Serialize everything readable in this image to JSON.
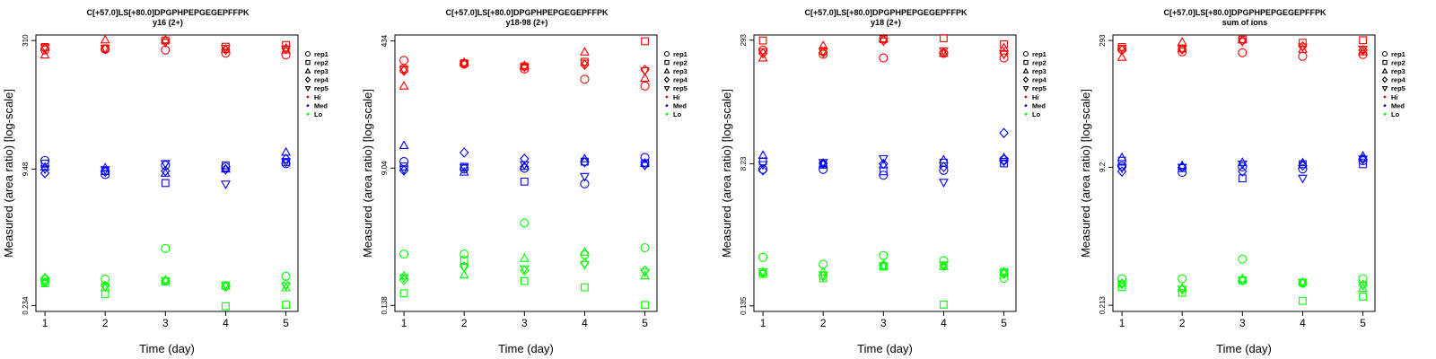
{
  "legend": {
    "shapes": [
      {
        "label": "rep1",
        "shape": "circle"
      },
      {
        "label": "rep2",
        "shape": "square"
      },
      {
        "label": "rep3",
        "shape": "triangle-up"
      },
      {
        "label": "rep4",
        "shape": "diamond"
      },
      {
        "label": "rep5",
        "shape": "triangle-down"
      }
    ],
    "levels": [
      {
        "label": "Hi",
        "color": "#ff0000"
      },
      {
        "label": "Med",
        "color": "#0000ff"
      },
      {
        "label": "Lo",
        "color": "#00ff00"
      }
    ]
  },
  "chart_data": [
    {
      "type": "scatter",
      "title": "C[+57.0]LS[+80.0]DPGPHPEPGEGEPFFPK",
      "subtitle": "y16 (2+)",
      "xlabel": "Time (day)",
      "ylabel": "Measured (area ratio) [log-scale]",
      "yscale": "log",
      "x_ticks": [
        1,
        2,
        3,
        4,
        5
      ],
      "y_ticks": [
        "0.234",
        "9.48",
        "310"
      ],
      "xlim": [
        0.85,
        5.2
      ],
      "ylim": [
        0.2,
        360
      ],
      "series": [
        {
          "name": "rep1",
          "level": "Hi",
          "values": [
            240,
            245,
            240,
            220,
            210
          ]
        },
        {
          "name": "rep2",
          "level": "Hi",
          "values": [
            260,
            250,
            310,
            262,
            275
          ]
        },
        {
          "name": "rep3",
          "level": "Hi",
          "values": [
            210,
            315,
            315,
            245,
            240
          ]
        },
        {
          "name": "rep4",
          "level": "Hi",
          "values": [
            250,
            245,
            305,
            240,
            250
          ]
        },
        {
          "name": "rep5",
          "level": "Hi",
          "values": [
            255,
            250,
            295,
            250,
            245
          ]
        },
        {
          "name": "rep1",
          "level": "Med",
          "values": [
            12,
            8.2,
            10.5,
            10,
            11
          ]
        },
        {
          "name": "rep2",
          "level": "Med",
          "values": [
            11,
            9.0,
            6.5,
            10.5,
            11.5
          ]
        },
        {
          "name": "rep3",
          "level": "Med",
          "values": [
            10,
            9.8,
            8.5,
            9.5,
            15
          ]
        },
        {
          "name": "rep4",
          "level": "Med",
          "values": [
            8.5,
            8.8,
            9.0,
            9.4,
            12.5
          ]
        },
        {
          "name": "rep5",
          "level": "Med",
          "values": [
            9.5,
            9.3,
            11,
            6.3,
            11.5
          ]
        },
        {
          "name": "rep1",
          "level": "Lo",
          "values": [
            0.48,
            0.48,
            1.1,
            0.4,
            0.52
          ]
        },
        {
          "name": "rep2",
          "level": "Lo",
          "values": [
            0.43,
            0.32,
            0.45,
            0.23,
            0.24
          ]
        },
        {
          "name": "rep3",
          "level": "Lo",
          "values": [
            0.5,
            0.38,
            0.47,
            0.4,
            0.38
          ]
        },
        {
          "name": "rep4",
          "level": "Lo",
          "values": [
            0.44,
            0.4,
            0.46,
            0.39,
            0.42
          ]
        },
        {
          "name": "rep5",
          "level": "Lo",
          "values": [
            0.45,
            0.39,
            0.46,
            0.41,
            0.4
          ]
        }
      ]
    },
    {
      "type": "scatter",
      "title": "C[+57.0]LS[+80.0]DPGPHPEPGEGEPFFPK",
      "subtitle": "y18-98 (2+)",
      "xlabel": "Time (day)",
      "ylabel": "Measured (area ratio) [log-scale]",
      "yscale": "log",
      "x_ticks": [
        1,
        2,
        3,
        4,
        5
      ],
      "y_ticks": [
        "0.138",
        "9.04",
        "434"
      ],
      "xlim": [
        0.85,
        5.2
      ],
      "ylim": [
        0.115,
        520
      ],
      "series": [
        {
          "name": "rep1",
          "level": "Hi",
          "values": [
            240,
            215,
            185,
            135,
            110
          ]
        },
        {
          "name": "rep2",
          "level": "Hi",
          "values": [
            185,
            220,
            200,
            230,
            430
          ]
        },
        {
          "name": "rep3",
          "level": "Hi",
          "values": [
            110,
            225,
            205,
            310,
            140
          ]
        },
        {
          "name": "rep4",
          "level": "Hi",
          "values": [
            175,
            220,
            200,
            210,
            180
          ]
        },
        {
          "name": "rep5",
          "level": "Hi",
          "values": [
            180,
            215,
            195,
            220,
            175
          ]
        },
        {
          "name": "rep1",
          "level": "Med",
          "values": [
            11,
            8.8,
            9.0,
            5.6,
            12.5
          ]
        },
        {
          "name": "rep2",
          "level": "Med",
          "values": [
            9.5,
            9.4,
            6.0,
            11,
            10.5
          ]
        },
        {
          "name": "rep3",
          "level": "Med",
          "values": [
            18,
            8.0,
            9.5,
            12,
            10.5
          ]
        },
        {
          "name": "rep4",
          "level": "Med",
          "values": [
            8.4,
            14.5,
            12,
            10.8,
            10
          ]
        },
        {
          "name": "rep5",
          "level": "Med",
          "values": [
            8.7,
            9.2,
            10,
            7.0,
            9.8
          ]
        },
        {
          "name": "rep1",
          "level": "Lo",
          "values": [
            0.66,
            0.66,
            1.7,
            0.65,
            0.8
          ]
        },
        {
          "name": "rep2",
          "level": "Lo",
          "values": [
            0.2,
            0.55,
            0.29,
            0.24,
            0.14
          ]
        },
        {
          "name": "rep3",
          "level": "Lo",
          "values": [
            0.34,
            0.35,
            0.58,
            0.7,
            0.34
          ]
        },
        {
          "name": "rep4",
          "level": "Lo",
          "values": [
            0.3,
            0.45,
            0.4,
            0.5,
            0.4
          ]
        },
        {
          "name": "rep5",
          "level": "Lo",
          "values": [
            0.32,
            0.44,
            0.42,
            0.48,
            0.38
          ]
        }
      ]
    },
    {
      "type": "scatter",
      "title": "C[+57.0]LS[+80.0]DPGPHPEPGEGEPFFPK",
      "subtitle": "y18 (2+)",
      "xlabel": "Time (day)",
      "ylabel": "Measured (area ratio) [log-scale]",
      "yscale": "log",
      "x_ticks": [
        1,
        2,
        3,
        4,
        5
      ],
      "y_ticks": [
        "0.135",
        "8.23",
        "293"
      ],
      "xlim": [
        0.85,
        5.2
      ],
      "ylim": [
        0.115,
        340
      ],
      "series": [
        {
          "name": "rep1",
          "level": "Hi",
          "values": [
            220,
            195,
            175,
            200,
            175
          ]
        },
        {
          "name": "rep2",
          "level": "Hi",
          "values": [
            290,
            215,
            300,
            310,
            260
          ]
        },
        {
          "name": "rep3",
          "level": "Hi",
          "values": [
            175,
            250,
            305,
            200,
            235
          ]
        },
        {
          "name": "rep4",
          "level": "Hi",
          "values": [
            200,
            205,
            290,
            205,
            200
          ]
        },
        {
          "name": "rep5",
          "level": "Hi",
          "values": [
            210,
            210,
            285,
            215,
            195
          ]
        },
        {
          "name": "rep1",
          "level": "Med",
          "values": [
            7.0,
            7.0,
            5.9,
            6.8,
            9.2
          ]
        },
        {
          "name": "rep2",
          "level": "Med",
          "values": [
            8.8,
            8.0,
            6.6,
            8.5,
            8.3
          ]
        },
        {
          "name": "rep3",
          "level": "Med",
          "values": [
            10.5,
            8.2,
            8.0,
            9.2,
            9.8
          ]
        },
        {
          "name": "rep4",
          "level": "Med",
          "values": [
            6.8,
            8.3,
            8.2,
            7.5,
            20
          ]
        },
        {
          "name": "rep5",
          "level": "Med",
          "values": [
            8.0,
            8.5,
            9.5,
            4.8,
            8.8
          ]
        },
        {
          "name": "rep1",
          "level": "Lo",
          "values": [
            0.55,
            0.45,
            0.58,
            0.5,
            0.3
          ]
        },
        {
          "name": "rep2",
          "level": "Lo",
          "values": [
            0.34,
            0.3,
            0.42,
            0.14,
            0.36
          ]
        },
        {
          "name": "rep3",
          "level": "Lo",
          "values": [
            0.36,
            0.36,
            0.43,
            0.42,
            0.36
          ]
        },
        {
          "name": "rep4",
          "level": "Lo",
          "values": [
            0.35,
            0.32,
            0.44,
            0.43,
            0.34
          ]
        },
        {
          "name": "rep5",
          "level": "Lo",
          "values": [
            0.36,
            0.33,
            0.43,
            0.44,
            0.35
          ]
        }
      ]
    },
    {
      "type": "scatter",
      "title": "C[+57.0]LS[+80.0]DPGPHPEPGEGEPFFPK",
      "subtitle": "sum of ions",
      "xlabel": "Time (day)",
      "ylabel": "Measured (area ratio) [log-scale]",
      "yscale": "log",
      "x_ticks": [
        1,
        2,
        3,
        4,
        5
      ],
      "y_ticks": [
        "0.213",
        "9.2",
        "293"
      ],
      "xlim": [
        0.85,
        5.2
      ],
      "ylim": [
        0.18,
        340
      ],
      "series": [
        {
          "name": "rep1",
          "level": "Hi",
          "values": [
            230,
            215,
            210,
            190,
            200
          ]
        },
        {
          "name": "rep2",
          "level": "Hi",
          "values": [
            245,
            235,
            300,
            275,
            295
          ]
        },
        {
          "name": "rep3",
          "level": "Hi",
          "values": [
            185,
            280,
            300,
            230,
            215
          ]
        },
        {
          "name": "rep4",
          "level": "Hi",
          "values": [
            225,
            230,
            290,
            250,
            225
          ]
        },
        {
          "name": "rep5",
          "level": "Hi",
          "values": [
            235,
            230,
            285,
            245,
            230
          ]
        },
        {
          "name": "rep1",
          "level": "Med",
          "values": [
            9.5,
            8.0,
            9.3,
            8.8,
            11.0
          ]
        },
        {
          "name": "rep2",
          "level": "Med",
          "values": [
            11,
            9.0,
            6.8,
            10,
            10.0
          ]
        },
        {
          "name": "rep3",
          "level": "Med",
          "values": [
            12,
            9.6,
            10.5,
            10.4,
            12.5
          ]
        },
        {
          "name": "rep4",
          "level": "Med",
          "values": [
            8.2,
            9.2,
            8.2,
            9.6,
            11.5
          ]
        },
        {
          "name": "rep5",
          "level": "Med",
          "values": [
            9.0,
            9.2,
            10,
            6.8,
            11.5
          ]
        },
        {
          "name": "rep1",
          "level": "Lo",
          "values": [
            0.44,
            0.44,
            0.75,
            0.39,
            0.44
          ]
        },
        {
          "name": "rep2",
          "level": "Lo",
          "values": [
            0.35,
            0.3,
            0.42,
            0.24,
            0.27
          ]
        },
        {
          "name": "rep3",
          "level": "Lo",
          "values": [
            0.39,
            0.34,
            0.44,
            0.4,
            0.34
          ]
        },
        {
          "name": "rep4",
          "level": "Lo",
          "values": [
            0.38,
            0.33,
            0.42,
            0.39,
            0.37
          ]
        },
        {
          "name": "rep5",
          "level": "Lo",
          "values": [
            0.38,
            0.33,
            0.42,
            0.4,
            0.37
          ]
        }
      ]
    }
  ]
}
